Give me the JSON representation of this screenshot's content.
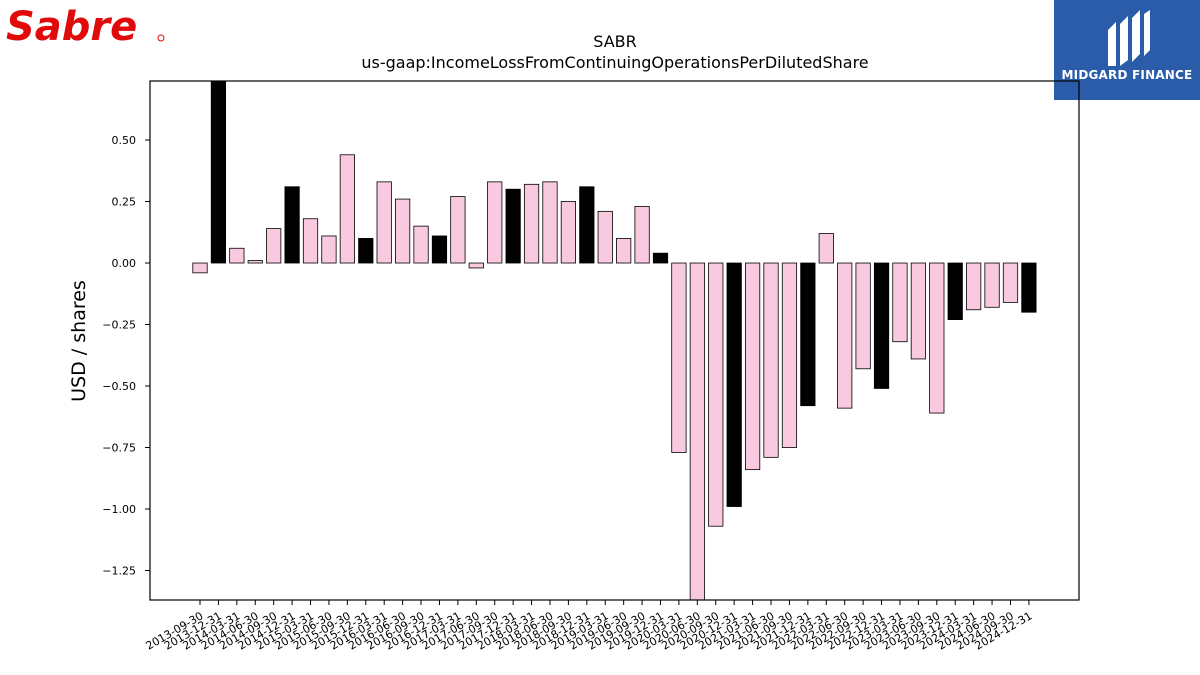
{
  "logos": {
    "left": {
      "text": "Sabre",
      "color": "#e10a0a"
    },
    "right": {
      "text": "MIDGARD FINANCE",
      "background": "#2a5caa",
      "icon": "midgard-monogram-icon"
    }
  },
  "chart_data": {
    "type": "bar",
    "title": "SABR",
    "subtitle": "us-gaap:IncomeLossFromContinuingOperationsPerDilutedShare",
    "ylabel": "USD / shares",
    "xlabel": "",
    "ylim": [
      -1.37,
      0.74
    ],
    "yticks": [
      0.5,
      0.25,
      0.0,
      -0.25,
      -0.5,
      -0.75,
      -1.0,
      -1.25
    ],
    "ytick_labels": [
      "0.50",
      "0.25",
      "0.00",
      "−0.25",
      "−0.50",
      "−0.75",
      "−1.00",
      "−1.25"
    ],
    "colors": {
      "quarter": "#f9c9df",
      "annual": "#000000",
      "edge": "#000000"
    },
    "categories": [
      "2013-09-30",
      "2013-12-31",
      "2014-03-31",
      "2014-06-30",
      "2014-09-30",
      "2014-12-31",
      "2015-03-31",
      "2015-06-30",
      "2015-09-30",
      "2015-12-31",
      "2016-03-31",
      "2016-06-30",
      "2016-09-30",
      "2016-12-31",
      "2017-03-31",
      "2017-06-30",
      "2017-09-30",
      "2017-12-31",
      "2018-03-31",
      "2018-06-30",
      "2018-09-30",
      "2018-12-31",
      "2019-03-31",
      "2019-06-30",
      "2019-09-30",
      "2019-12-31",
      "2020-03-31",
      "2020-06-30",
      "2020-09-30",
      "2020-12-31",
      "2021-03-31",
      "2021-06-30",
      "2021-09-30",
      "2021-12-31",
      "2022-03-31",
      "2022-06-30",
      "2022-09-30",
      "2022-12-31",
      "2023-03-31",
      "2023-06-30",
      "2023-09-30",
      "2023-12-31",
      "2024-03-31",
      "2024-06-30",
      "2024-09-30",
      "2024-12-31"
    ],
    "values": [
      -0.04,
      0.74,
      0.06,
      0.01,
      0.14,
      0.31,
      0.18,
      0.11,
      0.44,
      0.1,
      0.33,
      0.26,
      0.15,
      0.11,
      0.27,
      -0.02,
      0.33,
      0.3,
      0.32,
      0.33,
      0.25,
      0.31,
      0.21,
      0.1,
      0.23,
      0.04,
      -0.77,
      -1.37,
      -1.07,
      -0.99,
      -0.84,
      -0.79,
      -0.75,
      -0.58,
      0.12,
      -0.59,
      -0.43,
      -0.51,
      -0.32,
      -0.39,
      -0.61,
      -0.23,
      -0.19,
      -0.18,
      -0.16,
      -0.2
    ],
    "annual_categories": [
      "2013-12-31",
      "2014-12-31",
      "2015-12-31",
      "2016-12-31",
      "2017-12-31",
      "2018-12-31",
      "2019-12-31",
      "2020-12-31",
      "2021-12-31",
      "2022-12-31",
      "2023-12-31",
      "2024-12-31"
    ],
    "legend": "none",
    "grid": false
  }
}
